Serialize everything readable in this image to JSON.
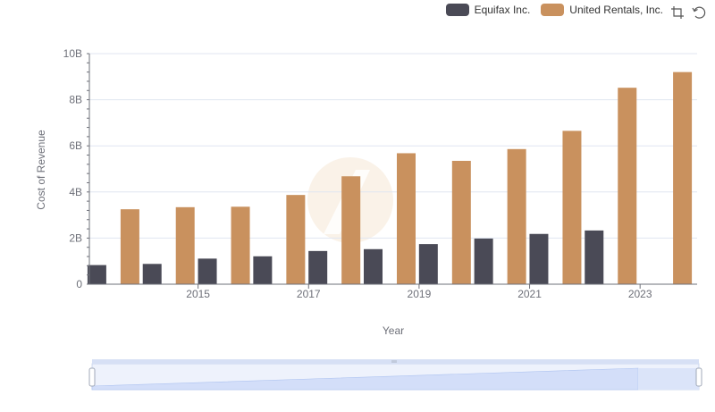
{
  "chart_data": {
    "type": "bar",
    "title": "",
    "xlabel": "Year",
    "ylabel": "Cost of Revenue",
    "categories": [
      "2014",
      "2015",
      "2016",
      "2017",
      "2018",
      "2019",
      "2020",
      "2021",
      "2022",
      "2023",
      "2024"
    ],
    "x_tick_labels": [
      "2015",
      "2017",
      "2019",
      "2021",
      "2023"
    ],
    "y_tick_labels": [
      "0",
      "2B",
      "4B",
      "6B",
      "8B",
      "10B"
    ],
    "ylim": [
      0,
      10000000000
    ],
    "series": [
      {
        "name": "Equifax Inc.",
        "color": "#4a4a56",
        "values": [
          830000000,
          880000000,
          1110000000,
          1210000000,
          1440000000,
          1520000000,
          1740000000,
          1980000000,
          2180000000,
          2330000000,
          null
        ]
      },
      {
        "name": "United Rentals, Inc.",
        "color": "#c9915e",
        "values": [
          3250000000,
          3340000000,
          3360000000,
          3870000000,
          4680000000,
          5680000000,
          5350000000,
          5860000000,
          6650000000,
          8520000000,
          9200000000
        ]
      }
    ],
    "legend_position": "top-right",
    "grid": true
  },
  "legend": {
    "items": [
      {
        "label": "Equifax Inc.",
        "color": "#4a4a56"
      },
      {
        "label": "United Rentals, Inc.",
        "color": "#c9915e"
      }
    ]
  },
  "toolbox": {
    "zoom_icon": "zoom-select-icon",
    "restore_icon": "restore-icon"
  },
  "datazoom": {
    "range_start_pct": 0,
    "range_end_pct": 100
  }
}
